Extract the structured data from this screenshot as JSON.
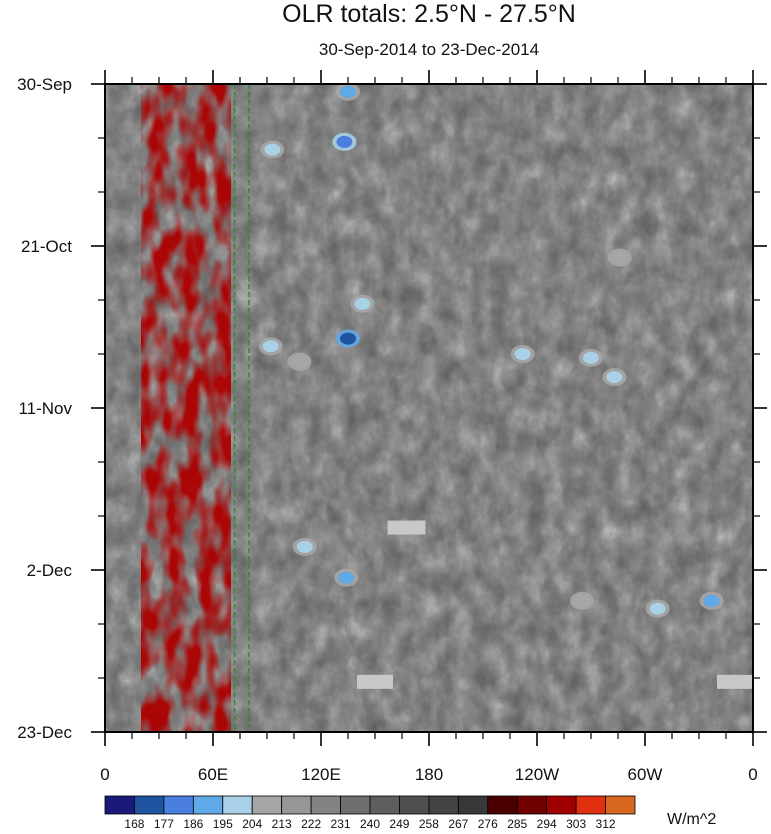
{
  "chart_data": {
    "type": "heatmap",
    "title": "OLR totals: 2.5°N - 27.5°N",
    "subtitle": "30-Sep-2014 to 23-Dec-2014",
    "x_axis": {
      "range": [
        "0",
        "0"
      ],
      "ticks": [
        "0",
        "60E",
        "120E",
        "180",
        "120W",
        "60W",
        "0"
      ],
      "tick_lon": [
        0,
        60,
        120,
        180,
        240,
        300,
        360
      ]
    },
    "y_axis": {
      "range": [
        "30-Sep-2014",
        "23-Dec-2014"
      ],
      "ticks": [
        "30-Sep",
        "21-Oct",
        "11-Nov",
        "2-Dec",
        "23-Dec"
      ],
      "tick_day": [
        0,
        21,
        42,
        63,
        84
      ],
      "minor_tick_day": [
        7,
        14,
        28,
        35,
        49,
        56,
        70,
        77
      ]
    },
    "colorbar": {
      "units": "W/m^2",
      "levels": [
        168,
        177,
        186,
        195,
        204,
        213,
        222,
        231,
        240,
        249,
        258,
        267,
        276,
        285,
        294,
        303,
        312
      ],
      "colors": [
        "#1a1a7a",
        "#1f55a0",
        "#4a7fe0",
        "#5fa9e6",
        "#a8d0e6",
        "#a6a6a6",
        "#979797",
        "#838383",
        "#6f6f6f",
        "#5e5e5e",
        "#4f4f4f",
        "#434343",
        "#383838",
        "#4a0000",
        "#6e0000",
        "#a00000",
        "#e03010",
        "#d86820"
      ]
    },
    "features": {
      "cold_cloud_cores": [
        {
          "lon": 135,
          "day": 1.0,
          "olr": 186
        },
        {
          "lon": 133,
          "day": 7.5,
          "olr": 177
        },
        {
          "lon": 135,
          "day": 33.0,
          "olr": 168
        },
        {
          "lon": 143,
          "day": 28.5,
          "olr": 195
        },
        {
          "lon": 93,
          "day": 8.5,
          "olr": 195
        },
        {
          "lon": 92,
          "day": 34.0,
          "olr": 195
        },
        {
          "lon": 108,
          "day": 36.0,
          "olr": 204
        },
        {
          "lon": 111,
          "day": 60.0,
          "olr": 195
        },
        {
          "lon": 134,
          "day": 64.0,
          "olr": 186
        },
        {
          "lon": 232,
          "day": 35.0,
          "olr": 195
        },
        {
          "lon": 270,
          "day": 35.5,
          "olr": 195
        },
        {
          "lon": 283,
          "day": 38.0,
          "olr": 195
        },
        {
          "lon": 337,
          "day": 67.0,
          "olr": 186
        },
        {
          "lon": 307,
          "day": 68.0,
          "olr": 195
        },
        {
          "lon": 286,
          "day": 22.5,
          "olr": 204
        },
        {
          "lon": 265,
          "day": 67.0,
          "olr": 204
        }
      ],
      "warm_dry_band": {
        "lon_range": [
          20,
          70
        ],
        "olr": 294
      },
      "missing_data": [
        {
          "lon_range": [
            157,
            178
          ],
          "day": 57.5
        },
        {
          "lon_range": [
            140,
            160
          ],
          "day": 77.5
        },
        {
          "lon_range": [
            340,
            360
          ],
          "day": 77.5
        }
      ],
      "dashed_lines_lon": [
        72,
        80
      ]
    }
  }
}
